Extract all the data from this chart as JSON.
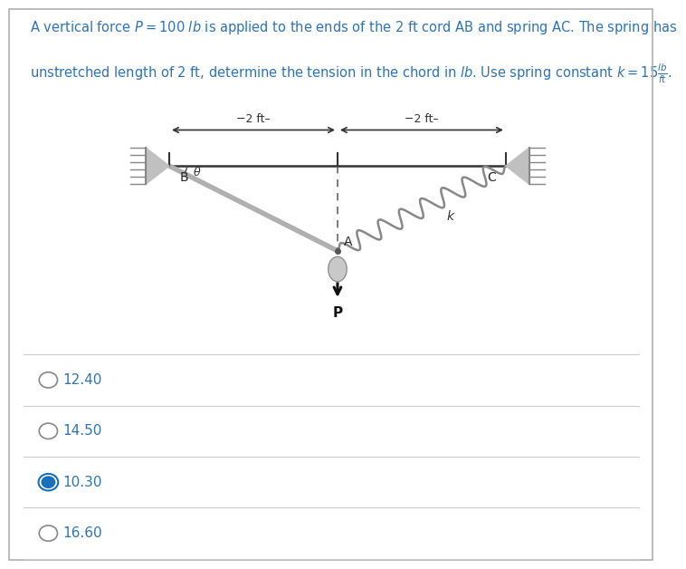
{
  "title_line1": "A vertical force $P = 100$ $lb$ is applied to the ends of the 2 ft cord AB and spring AC. The spring has",
  "title_line2": "unstretched length of 2 ft, determine the tension in the chord in $lb$. Use spring constant $k = 15\\frac{lb}{ft}$.",
  "title_color": "#2e74b5",
  "title_fontsize": 10.5,
  "bg_color": "#ffffff",
  "border_color": "#b0b0b0",
  "choices": [
    "12.40",
    "14.50",
    "10.30",
    "16.60"
  ],
  "choice_color": "#2e74b5",
  "choice_fontsize": 11,
  "correct_index": 2,
  "radio_selected_color": "#1a6fba",
  "radio_unselected_color": "#888888",
  "diagram": {
    "B": [
      0.0,
      0.0
    ],
    "C": [
      4.0,
      0.0
    ],
    "mid": [
      2.0,
      0.0
    ],
    "A": [
      2.0,
      -1.3
    ],
    "wall_color": "#aaaaaa",
    "cord_color": "#aaaaaa",
    "spring_color": "#888888",
    "dashed_color": "#666666",
    "line_color": "#333333",
    "text_color": "#222222"
  }
}
